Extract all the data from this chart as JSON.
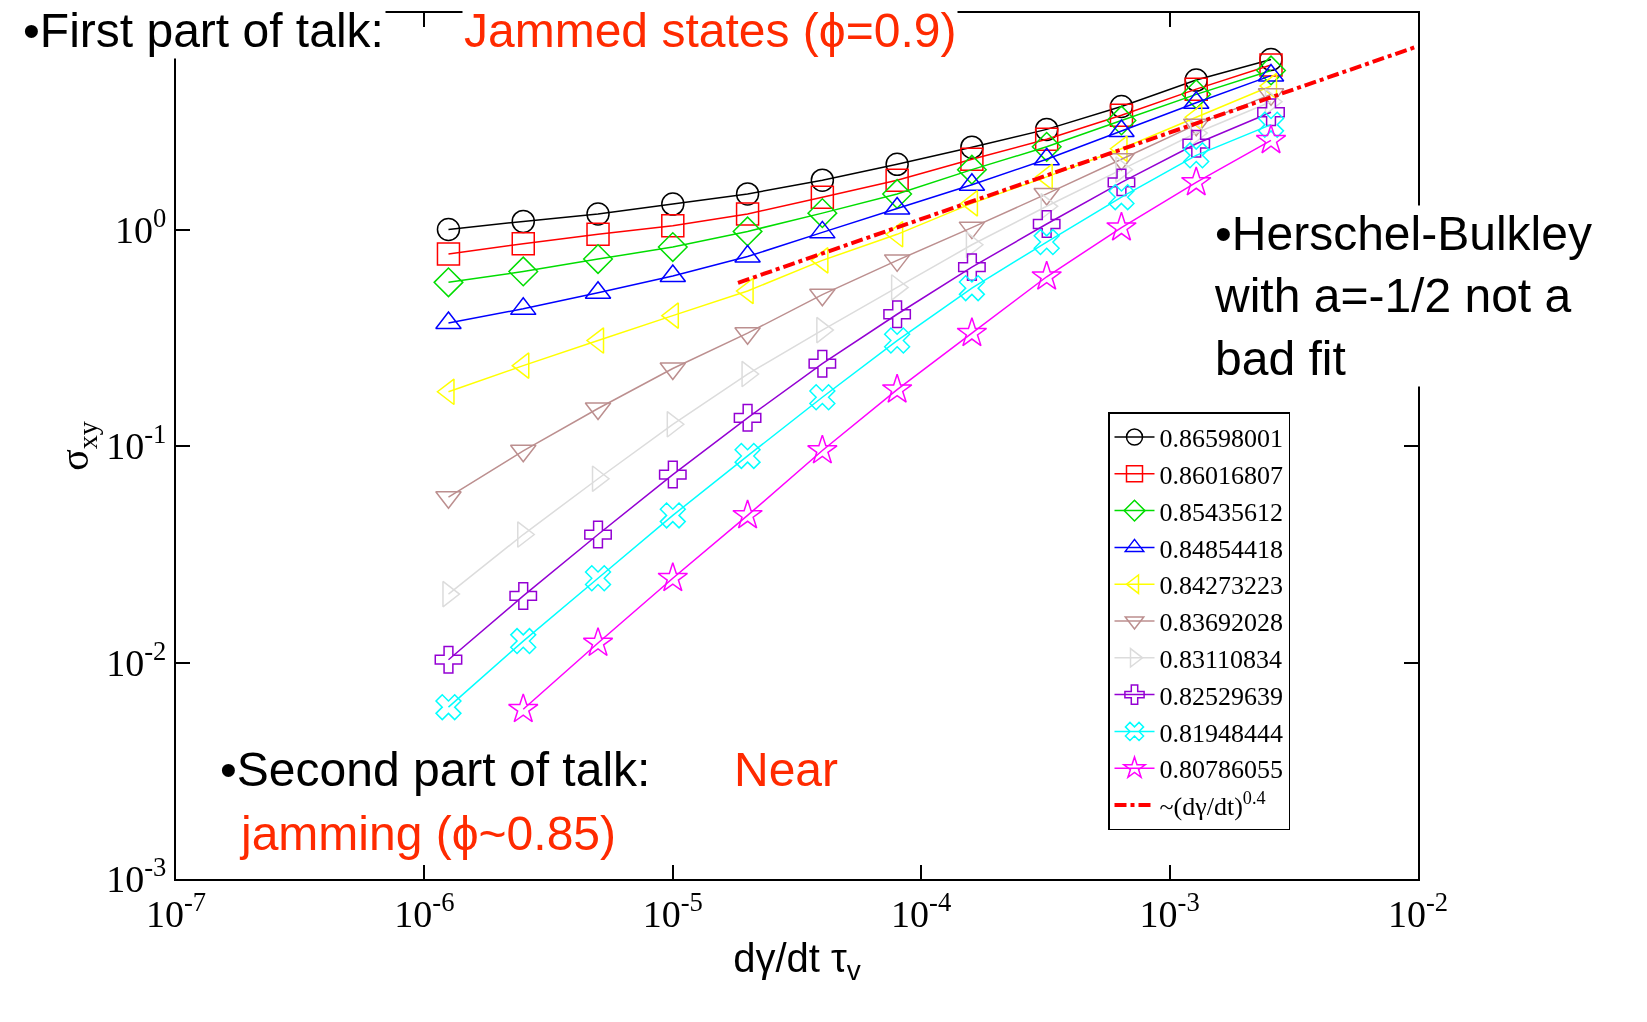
{
  "chart_data": {
    "type": "line",
    "xlabel": "dγ/dt τ$_{v}$",
    "ylabel": "σ$_{xy}$",
    "x": [
      1.25e-06,
      2.5e-06,
      5e-06,
      1e-05,
      2e-05,
      4e-05,
      8e-05,
      0.00016,
      0.00032,
      0.00064,
      0.00128,
      0.00256
    ],
    "series": [
      {
        "name": "0.86598001",
        "color": "#000000",
        "marker": "circle",
        "values": [
          1.0,
          1.09,
          1.18,
          1.31,
          1.46,
          1.69,
          2.0,
          2.4,
          2.9,
          3.7,
          4.9,
          6.1
        ]
      },
      {
        "name": "0.86016807",
        "color": "#ff0000",
        "marker": "square",
        "values": [
          0.77,
          0.86,
          0.95,
          1.04,
          1.18,
          1.41,
          1.69,
          2.11,
          2.61,
          3.37,
          4.45,
          5.75
        ]
      },
      {
        "name": "0.85435612",
        "color": "#00dd00",
        "marker": "diamond",
        "values": [
          0.57,
          0.64,
          0.73,
          0.83,
          0.98,
          1.19,
          1.46,
          1.89,
          2.41,
          3.19,
          4.21,
          5.43
        ]
      },
      {
        "name": "0.84854418",
        "color": "#0000ff",
        "marker": "triangle",
        "values": [
          0.37,
          0.43,
          0.51,
          0.61,
          0.75,
          0.97,
          1.25,
          1.61,
          2.11,
          2.85,
          3.85,
          5.14
        ]
      },
      {
        "name": "0.84273223",
        "color": "#ffff00",
        "marker": "triangle-left",
        "values": [
          0.178,
          0.235,
          0.307,
          0.4,
          0.52,
          0.72,
          0.95,
          1.32,
          1.75,
          2.36,
          3.3,
          4.6
        ]
      },
      {
        "name": "0.83692028",
        "color": "#bc8f8f",
        "marker": "triangle-down",
        "values": [
          0.058,
          0.095,
          0.149,
          0.228,
          0.332,
          0.5,
          0.72,
          1.02,
          1.46,
          2.11,
          3.05,
          4.21
        ]
      },
      {
        "name": "0.83110834",
        "color": "#dcdcdc",
        "marker": "triangle-right",
        "values": [
          0.0207,
          0.039,
          0.0706,
          0.126,
          0.215,
          0.343,
          0.54,
          0.85,
          1.28,
          1.89,
          2.79,
          3.89
        ]
      },
      {
        "name": "0.82529639",
        "color": "#9400d3",
        "marker": "cross",
        "values": [
          0.0103,
          0.0203,
          0.039,
          0.0738,
          0.135,
          0.24,
          0.406,
          0.67,
          1.06,
          1.65,
          2.49,
          3.48
        ]
      },
      {
        "name": "0.81948444",
        "color": "#00ffff",
        "marker": "x",
        "values": [
          0.00622,
          0.01256,
          0.0245,
          0.0478,
          0.09,
          0.168,
          0.307,
          0.536,
          0.875,
          1.41,
          2.2,
          3.05
        ]
      },
      {
        "name": "0.80786055",
        "color": "#ff00ff",
        "marker": "star",
        "values": [
          null,
          0.00608,
          0.0123,
          0.0245,
          0.0478,
          0.0953,
          0.182,
          0.332,
          0.605,
          1.02,
          1.65,
          2.58
        ]
      },
      {
        "name": "~(dγ/dt)$^{0.4}$",
        "color": "#ff0000",
        "marker": "none",
        "line_style": "dashdot",
        "x": [
          1.83e-05,
          0.01
        ],
        "values": [
          0.567,
          7.03
        ]
      }
    ],
    "log": "xy",
    "xlim": [
      1e-07,
      0.01
    ],
    "ylim": [
      0.001,
      10
    ],
    "xticks": [
      {
        "value": 1e-07,
        "label": "10$^{-7}$"
      },
      {
        "value": 1e-06,
        "label": "10$^{-6}$"
      },
      {
        "value": 1e-05,
        "label": "10$^{-5}$"
      },
      {
        "value": 0.0001,
        "label": "10$^{-4}$"
      },
      {
        "value": 0.001,
        "label": "10$^{-3}$"
      },
      {
        "value": 0.01,
        "label": "10$^{-2}$"
      }
    ],
    "yticks": [
      {
        "value": 0.001,
        "label": "10$^{-3}$"
      },
      {
        "value": 0.01,
        "label": "10$^{-2}$"
      },
      {
        "value": 0.1,
        "label": "10$^{-1}$"
      },
      {
        "value": 1,
        "label": "10$^{0}$"
      }
    ],
    "legend": "bottom right",
    "annotations": [
      "•First part of talk:",
      "Jammed states (ϕ=0.9)",
      "•Herschel-Bulkley\nwith a=-1/2 not a\nbad fit",
      "•Second part of talk:",
      "Near",
      "jamming (ϕ~0.85)"
    ]
  }
}
